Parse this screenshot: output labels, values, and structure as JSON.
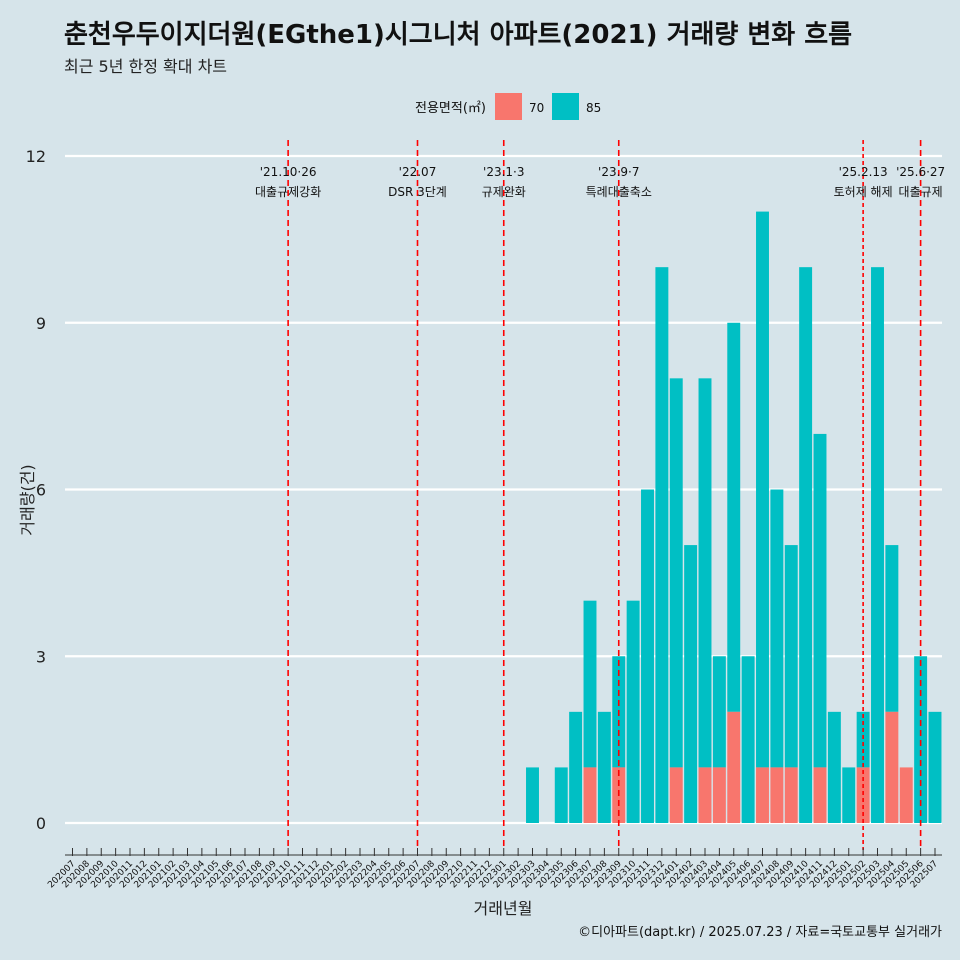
{
  "title": "춘천우두이지더원(EGthe1)시그니처 아파트(2021) 거래량 변화 흐름",
  "subtitle": "최근 5년 한정 확대 차트",
  "caption": "©디아파트(dapt.kr) / 2025.07.23 / 자료=국토교통부 실거래가",
  "colors": {
    "background": "#d6e4ea",
    "s70": "#f8766d",
    "s85": "#00bfc4",
    "event_line": "#ff0000",
    "grid": "#ffffff"
  },
  "chart_data": {
    "type": "bar",
    "stacked": true,
    "xlabel": "거래년월",
    "ylabel": "거래량(건)",
    "ylim": [
      0,
      12
    ],
    "yticks": [
      0,
      3,
      6,
      9,
      12
    ],
    "legend": {
      "title": "전용면적(㎡)",
      "placement": "top"
    },
    "categories": [
      "202007",
      "202008",
      "202009",
      "202010",
      "202011",
      "202012",
      "202101",
      "202102",
      "202103",
      "202104",
      "202105",
      "202106",
      "202107",
      "202108",
      "202109",
      "202110",
      "202111",
      "202112",
      "202201",
      "202202",
      "202203",
      "202204",
      "202205",
      "202206",
      "202207",
      "202208",
      "202209",
      "202210",
      "202211",
      "202212",
      "202301",
      "202302",
      "202303",
      "202304",
      "202305",
      "202306",
      "202307",
      "202308",
      "202309",
      "202310",
      "202311",
      "202312",
      "202401",
      "202402",
      "202403",
      "202404",
      "202405",
      "202406",
      "202407",
      "202408",
      "202409",
      "202410",
      "202411",
      "202412",
      "202501",
      "202502",
      "202503",
      "202504",
      "202505",
      "202506",
      "202507"
    ],
    "series": [
      {
        "name": "70",
        "values": [
          0,
          0,
          0,
          0,
          0,
          0,
          0,
          0,
          0,
          0,
          0,
          0,
          0,
          0,
          0,
          0,
          0,
          0,
          0,
          0,
          0,
          0,
          0,
          0,
          0,
          0,
          0,
          0,
          0,
          0,
          0,
          0,
          0,
          0,
          0,
          0,
          1,
          0,
          1,
          0,
          0,
          0,
          1,
          0,
          1,
          1,
          2,
          0,
          1,
          1,
          1,
          0,
          1,
          0,
          0,
          1,
          0,
          2,
          1,
          0,
          0
        ]
      },
      {
        "name": "85",
        "values": [
          0,
          0,
          0,
          0,
          0,
          0,
          0,
          0,
          0,
          0,
          0,
          0,
          0,
          0,
          0,
          0,
          0,
          0,
          0,
          0,
          0,
          0,
          0,
          0,
          0,
          0,
          0,
          0,
          0,
          0,
          0,
          0,
          1,
          0,
          1,
          2,
          3,
          2,
          2,
          4,
          6,
          10,
          7,
          5,
          7,
          2,
          7,
          3,
          10,
          5,
          4,
          10,
          6,
          2,
          1,
          1,
          10,
          3,
          0,
          3,
          2
        ]
      }
    ],
    "events": [
      {
        "month": "202110",
        "date": "'21.10·26",
        "label": "대출규제강화"
      },
      {
        "month": "202207",
        "date": "'22.07",
        "label": "DSR 3단계"
      },
      {
        "month": "202301",
        "date": "'23.1·3",
        "label": "규제완화"
      },
      {
        "month": "202309",
        "date": "'23.9·7",
        "label": "특례대출축소"
      },
      {
        "month": "202502",
        "date": "'25.2.13",
        "label": "토허제 해제"
      },
      {
        "month": "202506",
        "date": "'25.6·27",
        "label": "대출규제"
      }
    ]
  }
}
